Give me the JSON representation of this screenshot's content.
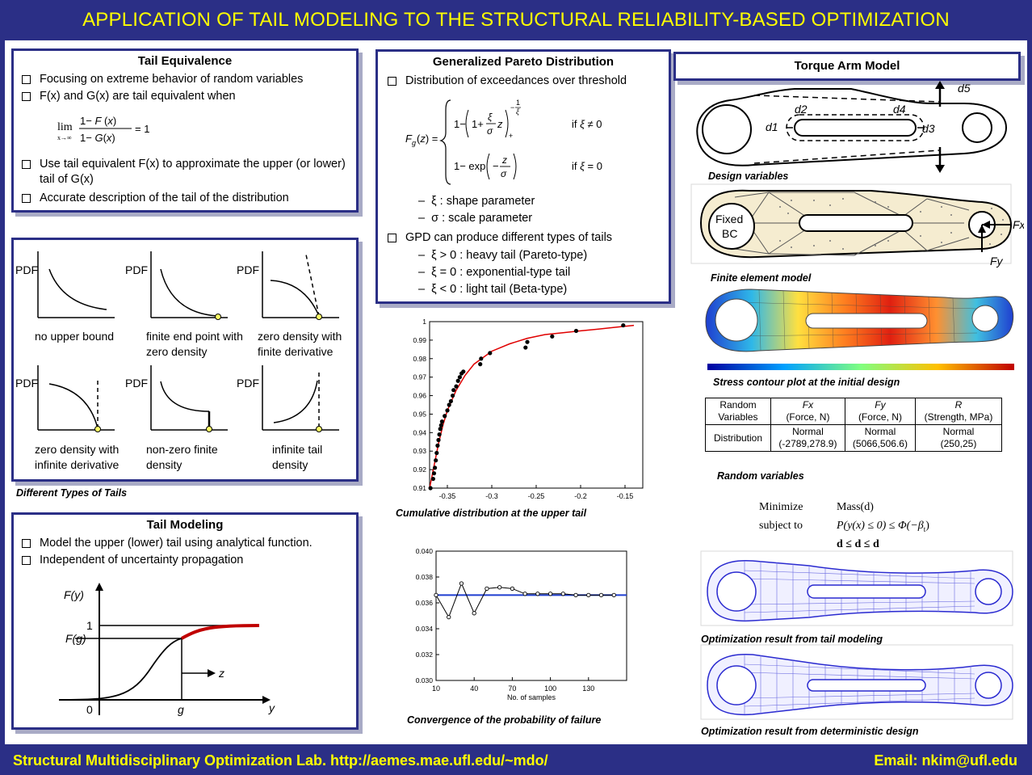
{
  "header": {
    "title": "APPLICATION OF TAIL MODELING TO THE STRUCTURAL RELIABILITY-BASED OPTIMIZATION"
  },
  "footer": {
    "lab": "Structural Multidisciplinary Optimization Lab. http://aemes.mae.ufl.edu/~mdo/",
    "email": "Email: nkim@ufl.edu"
  },
  "tail_equivalence": {
    "title": "Tail Equivalence",
    "bullets": [
      "Focusing on extreme behavior of random variables",
      "F(x) and G(x) are tail equivalent when",
      "Use tail equivalent F(x) to approximate the upper (or lower) tail of G(x)",
      "Accurate description of the tail of the distribution"
    ]
  },
  "tail_types": {
    "pdf_label": "PDF",
    "caption": "Different Types of Tails",
    "labels": [
      "no upper bound",
      "finite end point with zero density",
      "zero density with finite derivative",
      "zero density with infinite derivative",
      "non-zero finite density",
      "infinite tail density"
    ]
  },
  "tail_modeling": {
    "title": "Tail Modeling",
    "bullets": [
      "Model the upper (lower) tail using analytical function.",
      "Independent of uncertainty propagation"
    ],
    "diagram": {
      "fy": "F(y)",
      "fg": "F(g)",
      "one": "1",
      "zero": "0",
      "g": "g",
      "y": "y",
      "z": "z"
    }
  },
  "gpd": {
    "title": "Generalized Pareto Distribution",
    "bullets": [
      "Distribution of exceedances over threshold",
      "GPD can produce different types of tails"
    ],
    "params": [
      "ξ : shape parameter",
      "σ : scale parameter"
    ],
    "types": [
      "ξ > 0 : heavy tail (Pareto-type)",
      "ξ = 0 : exponential-type tail",
      "ξ < 0 : light tail (Beta-type)"
    ]
  },
  "cdf_plot": {
    "caption": "Cumulative distribution at the upper tail",
    "chart_data": {
      "type": "scatter",
      "xlim": [
        -0.37,
        -0.13
      ],
      "ylim": [
        0.91,
        1.0
      ],
      "xticks": [
        "-0.35",
        "-0.3",
        "-0.25",
        "-0.2",
        "-0.15"
      ],
      "yticks": [
        "0.91",
        "0.92",
        "0.93",
        "0.94",
        "0.95",
        "0.96",
        "0.97",
        "0.98",
        "0.99",
        "1"
      ],
      "points": [
        [
          -0.369,
          0.91
        ],
        [
          -0.366,
          0.915
        ],
        [
          -0.365,
          0.918
        ],
        [
          -0.364,
          0.921
        ],
        [
          -0.363,
          0.925
        ],
        [
          -0.362,
          0.929
        ],
        [
          -0.361,
          0.933
        ],
        [
          -0.36,
          0.936
        ],
        [
          -0.359,
          0.939
        ],
        [
          -0.358,
          0.942
        ],
        [
          -0.357,
          0.944
        ],
        [
          -0.356,
          0.946
        ],
        [
          -0.353,
          0.949
        ],
        [
          -0.35,
          0.952
        ],
        [
          -0.348,
          0.955
        ],
        [
          -0.346,
          0.957
        ],
        [
          -0.344,
          0.96
        ],
        [
          -0.343,
          0.963
        ],
        [
          -0.34,
          0.965
        ],
        [
          -0.338,
          0.968
        ],
        [
          -0.336,
          0.97
        ],
        [
          -0.334,
          0.972
        ],
        [
          -0.332,
          0.973
        ],
        [
          -0.313,
          0.977
        ],
        [
          -0.312,
          0.98
        ],
        [
          -0.302,
          0.983
        ],
        [
          -0.262,
          0.986
        ],
        [
          -0.26,
          0.989
        ],
        [
          -0.232,
          0.992
        ],
        [
          -0.205,
          0.995
        ],
        [
          -0.152,
          0.998
        ]
      ],
      "fit": [
        [
          -0.37,
          0.91
        ],
        [
          -0.365,
          0.922
        ],
        [
          -0.36,
          0.934
        ],
        [
          -0.355,
          0.944
        ],
        [
          -0.35,
          0.952
        ],
        [
          -0.34,
          0.963
        ],
        [
          -0.33,
          0.971
        ],
        [
          -0.32,
          0.977
        ],
        [
          -0.3,
          0.984
        ],
        [
          -0.28,
          0.988
        ],
        [
          -0.26,
          0.991
        ],
        [
          -0.24,
          0.993
        ],
        [
          -0.22,
          0.994
        ],
        [
          -0.2,
          0.995
        ],
        [
          -0.18,
          0.996
        ],
        [
          -0.16,
          0.997
        ],
        [
          -0.14,
          0.998
        ]
      ]
    }
  },
  "conv_plot": {
    "caption": "Convergence of the probability of failure",
    "chart_data": {
      "type": "line",
      "xlabel": "No. of samples",
      "xlim": [
        10,
        160
      ],
      "ylim": [
        0.03,
        0.04
      ],
      "xticks": [
        "10",
        "40",
        "70",
        "100",
        "130"
      ],
      "yticks": [
        "0.030",
        "0.032",
        "0.034",
        "0.036",
        "0.038",
        "0.040"
      ],
      "x": [
        10,
        20,
        30,
        40,
        50,
        60,
        70,
        80,
        90,
        100,
        110,
        120,
        130,
        140,
        150
      ],
      "y": [
        0.0366,
        0.0349,
        0.0375,
        0.0352,
        0.0371,
        0.0372,
        0.0371,
        0.0367,
        0.0367,
        0.0367,
        0.0367,
        0.0366,
        0.0366,
        0.0366,
        0.0366
      ],
      "reference": 0.0366
    }
  },
  "torque_arm": {
    "title": "Torque Arm Model",
    "dims": [
      "d1",
      "d2",
      "d3",
      "d4",
      "d5"
    ],
    "fem_labels": {
      "fixed": "Fixed",
      "bc": "BC",
      "fx": "Fx",
      "fy": "Fy"
    },
    "captions": {
      "design": "Design variables",
      "fem": "Finite element model",
      "stress": "Stress contour plot at the initial design",
      "rv": "Random variables",
      "opt_tail": "Optimization result from tail modeling",
      "opt_det": "Optimization result from deterministic design"
    },
    "table": {
      "header": [
        "Random Variables",
        "Fx",
        "Fy",
        "R"
      ],
      "header_sub": [
        "",
        "(Force, N)",
        "(Force, N)",
        "(Strength, MPa)"
      ],
      "row_label": "Distribution",
      "dist": [
        "Normal",
        "Normal",
        "Normal"
      ],
      "params": [
        "(-2789,278.9)",
        "(5066,506.6)",
        "(250,25)"
      ]
    },
    "formulation": {
      "minimize": "Minimize",
      "subject_to": "subject to",
      "objective": "Mass(d)",
      "constraint": "P(y(x) ≤ 0) ≤ Φ(−β",
      "bounds": "d ≤ d ≤ d"
    }
  }
}
